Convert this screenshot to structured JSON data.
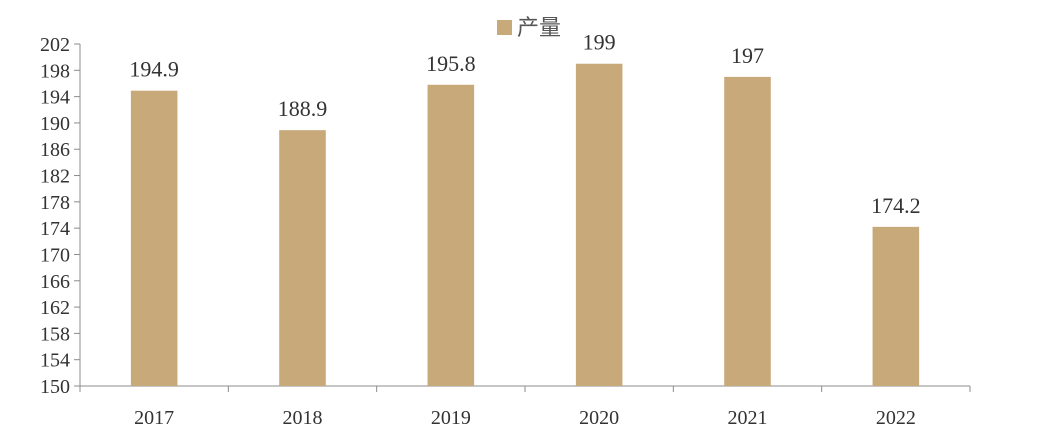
{
  "chart_data": {
    "type": "bar",
    "categories": [
      "2017",
      "2018",
      "2019",
      "2020",
      "2021",
      "2022"
    ],
    "series": [
      {
        "name": "产量",
        "values": [
          194.9,
          188.9,
          195.8,
          199,
          197,
          174.2
        ],
        "labels": [
          "194.9",
          "188.9",
          "195.8",
          "199",
          "197",
          "174.2"
        ],
        "color": "#c8a97a"
      }
    ],
    "title": "",
    "xlabel": "",
    "ylabel": "",
    "ylim": [
      150,
      202
    ],
    "yticks": [
      "202",
      "198",
      "194",
      "190",
      "186",
      "182",
      "178",
      "174",
      "170",
      "166",
      "162",
      "158",
      "154",
      "150"
    ],
    "grid": false,
    "legend_position": "top-center",
    "axis_color": "#8c8c8c"
  }
}
